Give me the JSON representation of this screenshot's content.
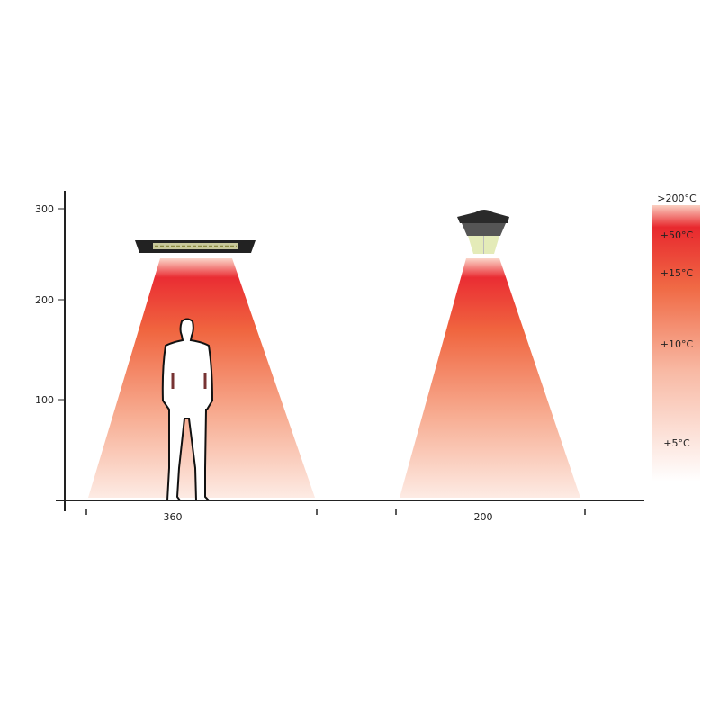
{
  "y_axis": {
    "ticks": [
      "300",
      "200",
      "100"
    ]
  },
  "x_axis": {
    "labels": [
      "360",
      "200"
    ]
  },
  "heaters": [
    {
      "type": "linear-ceiling-heater",
      "width_label": "360"
    },
    {
      "type": "pendant-heater",
      "width_label": "200"
    }
  ],
  "legend": {
    "labels": [
      ">200°C",
      "+50°C",
      "+15°C",
      "+10°C",
      "+5°C"
    ],
    "colors": {
      "hot": "#e8282e",
      "warm": "#f06a45",
      "cool": "#fde9e2"
    }
  },
  "icons": [
    "person-silhouette-icon"
  ]
}
